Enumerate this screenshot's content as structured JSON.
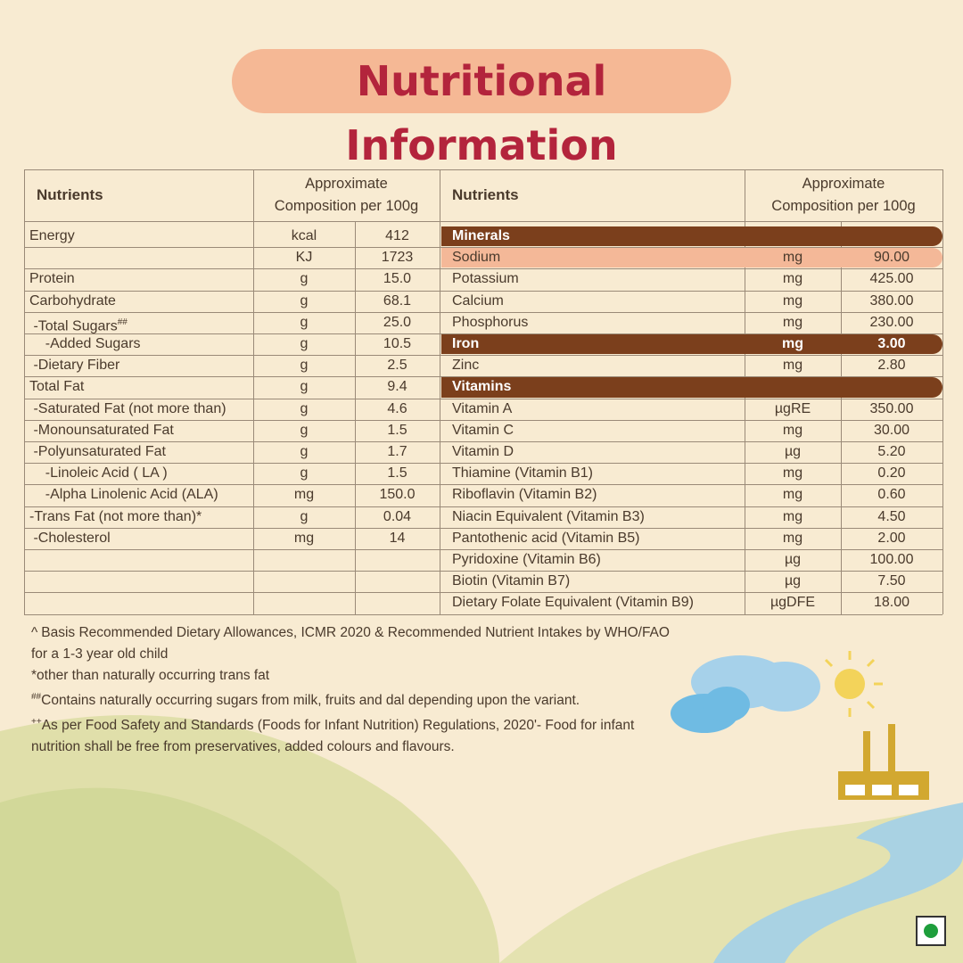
{
  "title": "Nutritional Information",
  "left_table": {
    "headers": [
      "Nutrients",
      "Approximate Composition per 100g"
    ],
    "rows": [
      {
        "name": "Energy",
        "unit": "kcal",
        "value": "412"
      },
      {
        "unit": "KJ",
        "value": "1723"
      },
      {
        "name": "Protein",
        "unit": "g",
        "value": "15.0"
      },
      {
        "name": "Carbohydrate",
        "unit": "g",
        "value": "68.1"
      },
      {
        "name": " -Total Sugars",
        "sup": "##",
        "unit": "g",
        "value": "25.0"
      },
      {
        "name": "    -Added Sugars",
        "unit": "g",
        "value": "10.5"
      },
      {
        "name": " -Dietary Fiber",
        "unit": "g",
        "value": "2.5"
      },
      {
        "name": "Total Fat",
        "unit": "g",
        "value": "9.4"
      },
      {
        "name": " -Saturated Fat (not more than)",
        "unit": "g",
        "value": "4.6"
      },
      {
        "name": " -Monounsaturated Fat",
        "unit": "g",
        "value": "1.5"
      },
      {
        "name": " -Polyunsaturated Fat",
        "unit": "g",
        "value": "1.7"
      },
      {
        "name": "    -Linoleic Acid ( LA )",
        "unit": "g",
        "value": "1.5"
      },
      {
        "name": "    -Alpha Linolenic Acid (ALA)",
        "unit": "mg",
        "value": "150.0"
      },
      {
        "name": "-Trans Fat (not more than)*",
        "unit": "g",
        "value": "0.04"
      },
      {
        "name": " -Cholesterol",
        "unit": "mg",
        "value": "14"
      }
    ]
  },
  "right_table": {
    "headers": [
      "Nutrients",
      "Approximate Composition per 100g"
    ],
    "rows": [
      {
        "name": "Minerals",
        "highlight": "dark"
      },
      {
        "name": "Sodium",
        "unit": "mg",
        "value": "90.00",
        "highlight": "light"
      },
      {
        "name": "Potassium",
        "unit": "mg",
        "value": "425.00"
      },
      {
        "name": "Calcium",
        "unit": "mg",
        "value": "380.00"
      },
      {
        "name": "Phosphorus",
        "unit": "mg",
        "value": "230.00"
      },
      {
        "name": "Iron",
        "unit": "mg",
        "value": "3.00",
        "highlight": "dark"
      },
      {
        "name": "Zinc",
        "unit": "mg",
        "value": "2.80"
      },
      {
        "name": "Vitamins",
        "highlight": "dark"
      },
      {
        "name": "Vitamin A",
        "unit": "µgRE",
        "value": "350.00"
      },
      {
        "name": "Vitamin C",
        "unit": "mg",
        "value": "30.00"
      },
      {
        "name": "Vitamin D",
        "unit": "µg",
        "value": "5.20"
      },
      {
        "name": "Thiamine (Vitamin B1)",
        "unit": "mg",
        "value": "0.20"
      },
      {
        "name": "Riboflavin (Vitamin B2)",
        "unit": "mg",
        "value": "0.60"
      },
      {
        "name": "Niacin Equivalent (Vitamin B3)",
        "unit": "mg",
        "value": "4.50"
      },
      {
        "name": "Pantothenic acid (Vitamin B5)",
        "unit": "mg",
        "value": "2.00"
      },
      {
        "name": "Pyridoxine (Vitamin B6)",
        "unit": "µg",
        "value": "100.00"
      },
      {
        "name": "Biotin (Vitamin B7)",
        "unit": "µg",
        "value": "7.50"
      },
      {
        "name": "Dietary Folate Equivalent (Vitamin B9)",
        "unit": "µgDFE",
        "value": "18.00"
      }
    ]
  },
  "footnotes": [
    {
      "mark": "^",
      "text": "Basis Recommended Dietary Allowances, ICMR 2020 & Recommended Nutrient Intakes by WHO/FAO for a 1-3 year old child"
    },
    {
      "mark": "*",
      "text": "other than naturally occurring trans fat"
    },
    {
      "mark": "##",
      "text": "Contains naturally occurring sugars from milk, fruits and dal depending upon the variant."
    },
    {
      "mark": "++",
      "text": "As per Food Safety and Standards (Foods for Infant Nutrition) Regulations, 2020'- Food for infant nutrition   shall be free from preservatives, added colours and flavours."
    }
  ]
}
